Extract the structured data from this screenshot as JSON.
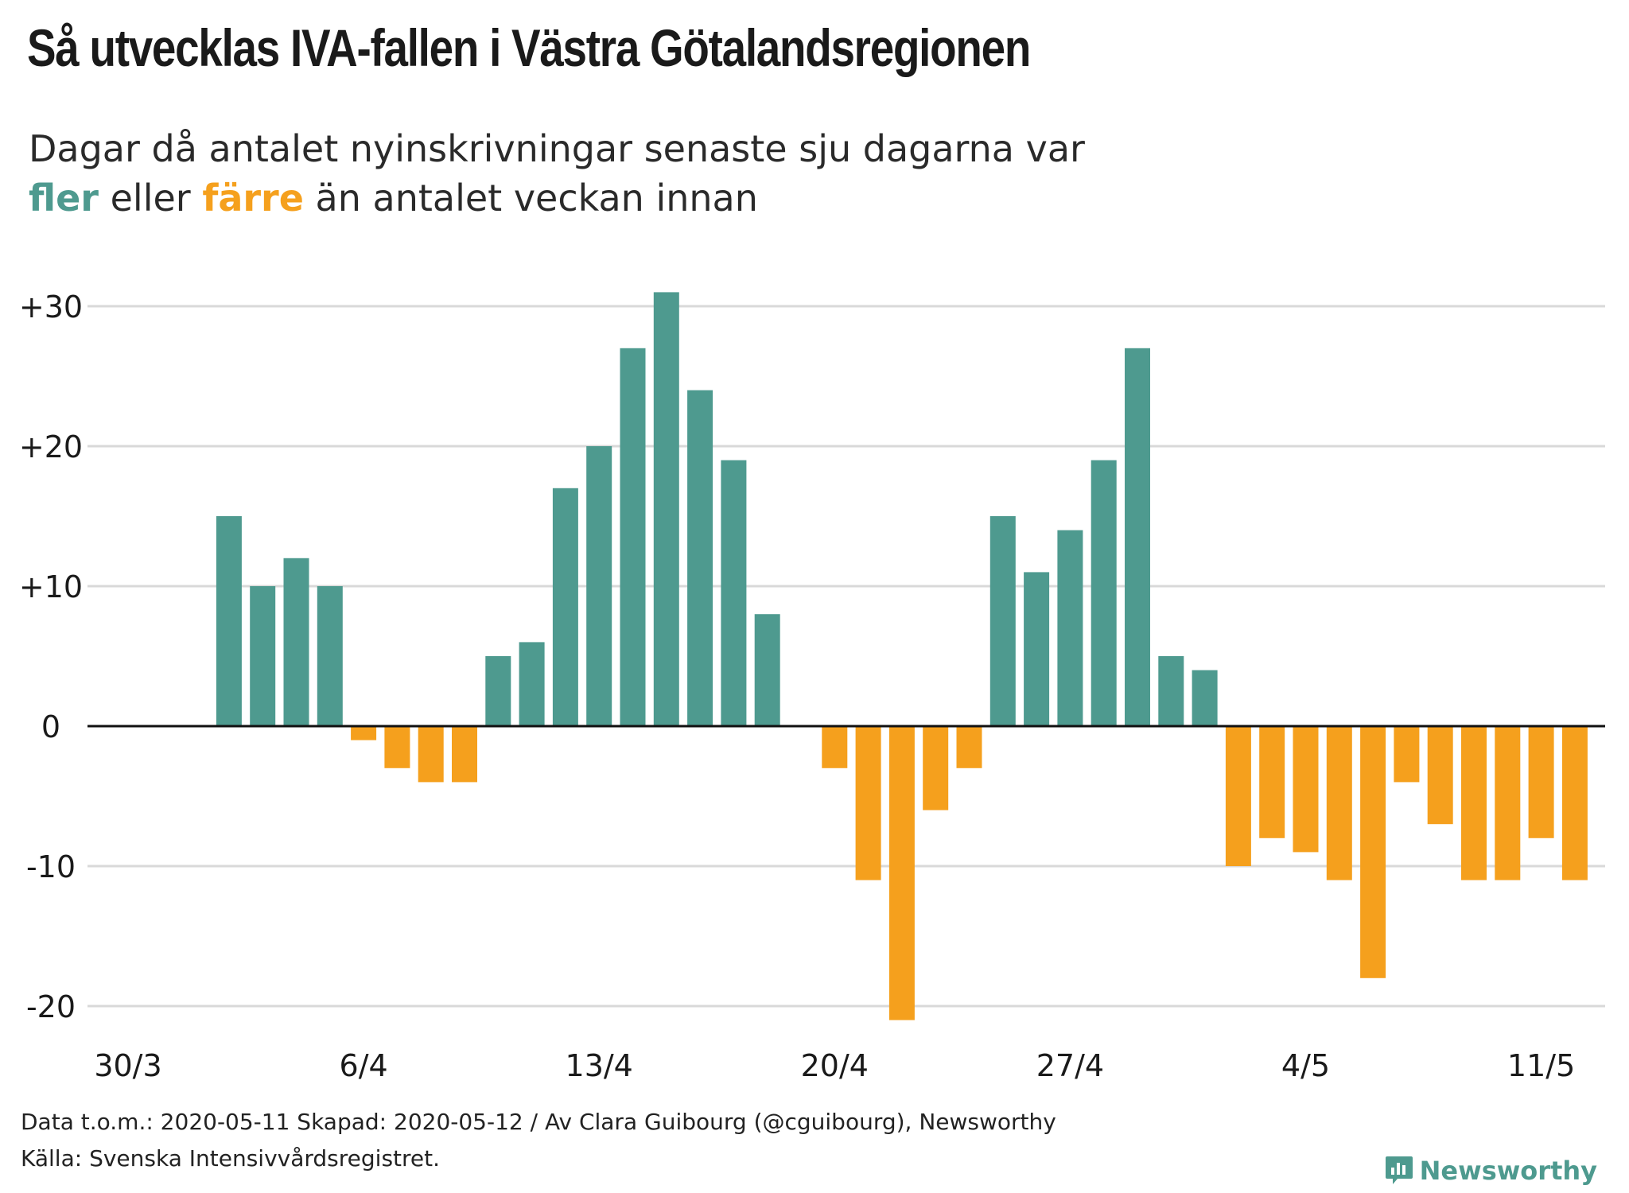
{
  "header": {
    "title": "Så utvecklas IVA-fallen i Västra Götalandsregionen",
    "subtitle_line1": "Dagar då antalet nyinskrivningar senaste sju dagarna var",
    "subtitle_word_more": "fler",
    "subtitle_mid": " eller ",
    "subtitle_word_fewer": "färre",
    "subtitle_end": " än antalet veckan innan"
  },
  "colors": {
    "positive": "#4e9a8f",
    "negative": "#f5a01d",
    "text": "#1a1a1a",
    "grid": "#d9d9d9"
  },
  "chart_data": {
    "type": "bar",
    "x_tick_labels": [
      "30/3",
      "6/4",
      "13/4",
      "20/4",
      "27/4",
      "4/5",
      "11/5"
    ],
    "x_ticks_at_day_index": [
      0,
      7,
      14,
      21,
      28,
      35,
      42
    ],
    "y_tick_labels": [
      "+30",
      "+20",
      "+10",
      "0",
      "-10",
      "-20"
    ],
    "y_ticks": [
      30,
      20,
      10,
      0,
      -10,
      -20
    ],
    "ylim": [
      -23,
      32
    ],
    "grid": true,
    "series": [
      {
        "values": [
          null,
          null,
          null,
          15,
          10,
          12,
          10,
          -1,
          -3,
          -4,
          -4,
          5,
          6,
          17,
          20,
          27,
          31,
          24,
          19,
          8,
          null,
          -3,
          -11,
          -21,
          -6,
          -3,
          15,
          11,
          14,
          19,
          27,
          5,
          4,
          -10,
          -8,
          -9,
          -11,
          -18,
          -4,
          -7,
          -11,
          -11,
          -8,
          -11
        ]
      }
    ]
  },
  "footer": {
    "line1": "Data t.o.m.: 2020-05-11 Skapad: 2020-05-12 / Av Clara Guibourg (@cguibourg), Newsworthy",
    "line2": "Källa: Svenska Intensivvårdsregistret.",
    "brand": "Newsworthy",
    "brand_icon": "bar-chart-speech-bubble-icon"
  }
}
